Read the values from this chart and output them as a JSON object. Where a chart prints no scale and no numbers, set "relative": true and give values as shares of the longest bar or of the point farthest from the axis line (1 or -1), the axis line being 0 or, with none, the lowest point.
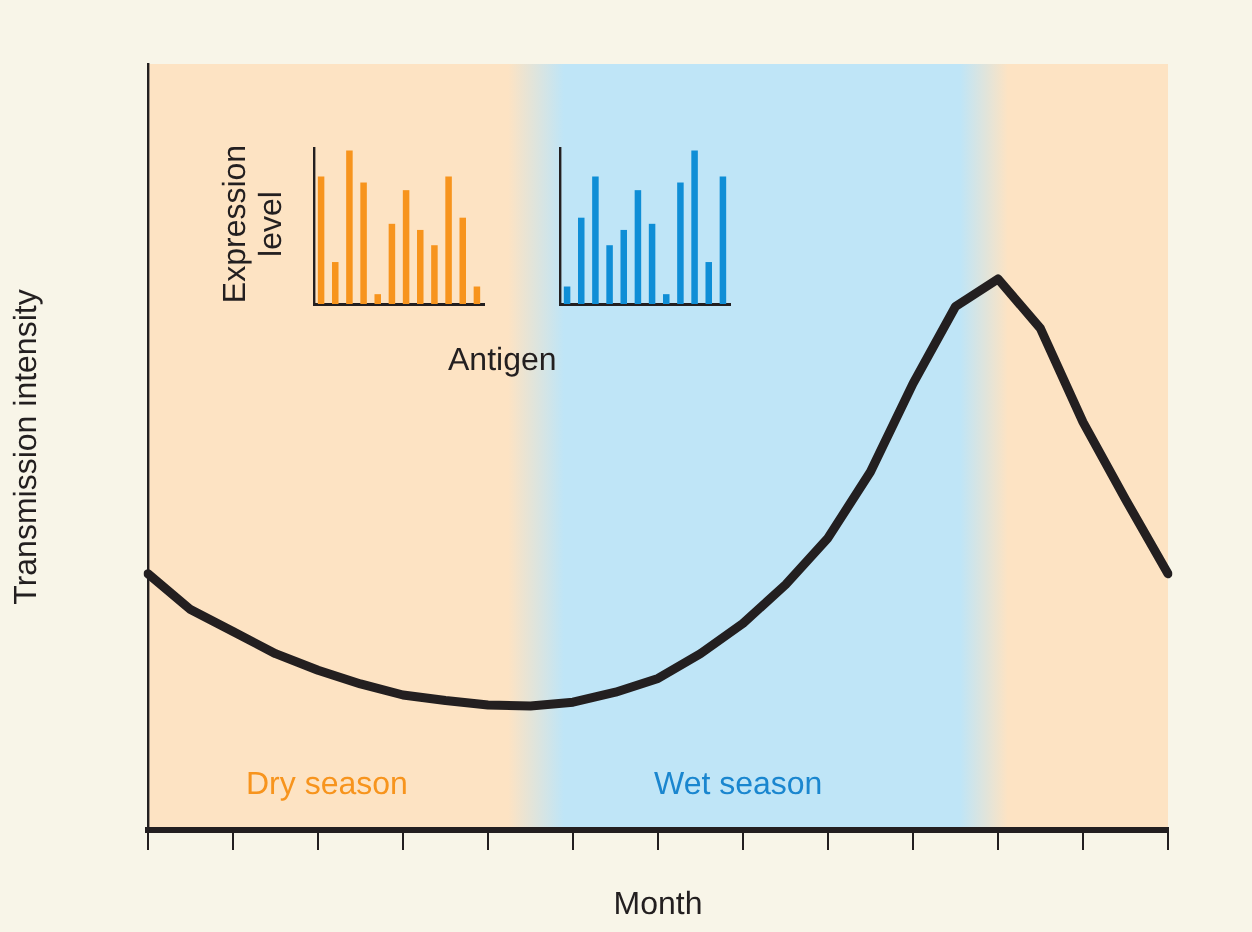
{
  "chart_data": [
    {
      "type": "line",
      "xlabel": "Month",
      "ylabel": "Transmission intensity",
      "relative": true,
      "categories": [
        null,
        null,
        null,
        null,
        null,
        null,
        null,
        null,
        null,
        null,
        null,
        null,
        null,
        null,
        null,
        null,
        null,
        null,
        null,
        null,
        null,
        null,
        null,
        null,
        null
      ],
      "series": [
        {
          "color": "#231f20",
          "values": [
            0.465,
            0.4,
            0.36,
            0.32,
            0.29,
            0.265,
            0.245,
            0.235,
            0.227,
            0.225,
            0.232,
            0.25,
            0.275,
            0.32,
            0.375,
            0.445,
            0.53,
            0.65,
            0.81,
            0.95,
            1,
            0.91,
            0.74,
            0.6,
            0.465
          ]
        }
      ],
      "annotations": [
        "Dry season",
        "Wet season"
      ]
    },
    {
      "type": "bar",
      "ylabel": "Expression level",
      "xlabel": "Antigen",
      "relative": true,
      "categories": [
        null,
        null,
        null,
        null,
        null,
        null,
        null,
        null,
        null,
        null,
        null,
        null
      ],
      "series": [
        {
          "color": "#f7941d",
          "values": [
            0.83,
            0.27,
            1,
            0.79,
            0.06,
            0.52,
            0.74,
            0.48,
            0.38,
            0.83,
            0.56,
            0.11
          ]
        }
      ]
    },
    {
      "type": "bar",
      "relative": true,
      "categories": [
        null,
        null,
        null,
        null,
        null,
        null,
        null,
        null,
        null,
        null,
        null,
        null
      ],
      "series": [
        {
          "color": "#0f8ed6",
          "values": [
            0.11,
            0.56,
            0.83,
            0.38,
            0.48,
            0.74,
            0.52,
            0.06,
            0.79,
            1,
            0.27,
            0.83
          ]
        }
      ]
    }
  ]
}
